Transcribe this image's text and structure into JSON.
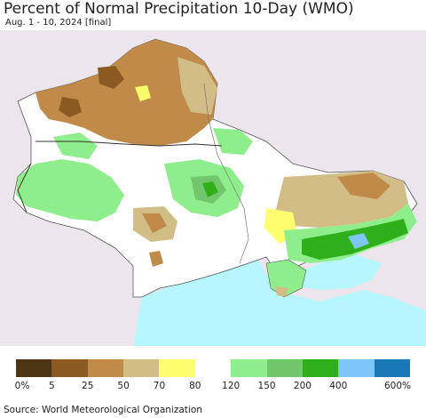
{
  "header": {
    "title": "Percent of Normal Precipitation 10-Day (WMO)",
    "subtitle": "Aug. 1 - 10, 2024 [final]"
  },
  "legend": {
    "colors": [
      "#4d3413",
      "#8b5a22",
      "#c08a48",
      "#d2bd86",
      "#fefe6e",
      "#ffffff",
      "#8fee8c",
      "#72c76d",
      "#2fb01a",
      "#7cc6f8",
      "#1a77b8"
    ],
    "ticks": [
      "0%",
      "5",
      "25",
      "50",
      "70",
      "80",
      "120",
      "150",
      "200",
      "400",
      "600%"
    ]
  },
  "footer": {
    "source": "Source: World Meteorological Organization"
  }
}
